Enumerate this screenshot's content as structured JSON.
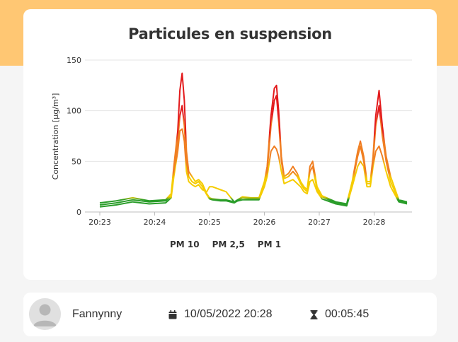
{
  "colors": {
    "accent": "#ffc773",
    "pm10": "#e31a1c",
    "pm25": "#f07f22",
    "pm1": "#f5cc00",
    "good": "#2a9d2a"
  },
  "chart_data": {
    "type": "line",
    "title": "Particules en suspension",
    "ylabel": "Concentration [µg/m³]",
    "xlabel": "",
    "ylim": [
      0,
      150
    ],
    "yticks": [
      "0",
      "50",
      "100",
      "150"
    ],
    "xticks": [
      "20:23",
      "20:24",
      "20:25",
      "20:26",
      "20:27",
      "20:28"
    ],
    "grid": true,
    "legend_position": "bottom",
    "x_unit": "minutes since 20:23",
    "series": [
      {
        "name": "PM 10",
        "x": [
          0,
          0.3,
          0.6,
          0.9,
          1.2,
          1.3,
          1.35,
          1.42,
          1.46,
          1.5,
          1.54,
          1.58,
          1.62,
          1.68,
          1.74,
          1.8,
          1.87,
          1.95,
          2.0,
          2.05,
          2.2,
          2.3,
          2.45,
          2.6,
          2.75,
          2.9,
          3.0,
          3.05,
          3.12,
          3.18,
          3.22,
          3.26,
          3.31,
          3.36,
          3.44,
          3.52,
          3.6,
          3.66,
          3.72,
          3.78,
          3.83,
          3.88,
          3.96,
          4.05,
          4.3,
          4.5,
          4.6,
          4.7,
          4.75,
          4.81,
          4.87,
          4.93,
          4.98,
          5.03,
          5.09,
          5.15,
          5.22,
          5.3,
          5.45,
          5.6
        ],
        "values": [
          9,
          11,
          14,
          11,
          12,
          18,
          45,
          80,
          120,
          137,
          110,
          60,
          40,
          35,
          30,
          32,
          28,
          18,
          14,
          13,
          12,
          12,
          10,
          15,
          14,
          14,
          30,
          45,
          95,
          122,
          125,
          100,
          55,
          35,
          38,
          45,
          38,
          30,
          25,
          22,
          45,
          50,
          25,
          16,
          10,
          8,
          30,
          60,
          70,
          55,
          30,
          30,
          55,
          95,
          120,
          85,
          55,
          35,
          12,
          10
        ]
      },
      {
        "name": "PM 2,5",
        "x": [
          0,
          0.3,
          0.6,
          0.9,
          1.2,
          1.3,
          1.35,
          1.42,
          1.46,
          1.5,
          1.54,
          1.58,
          1.62,
          1.68,
          1.74,
          1.8,
          1.87,
          1.95,
          2.0,
          2.05,
          2.2,
          2.3,
          2.45,
          2.6,
          2.75,
          2.9,
          3.0,
          3.05,
          3.12,
          3.18,
          3.22,
          3.26,
          3.31,
          3.36,
          3.44,
          3.52,
          3.6,
          3.66,
          3.72,
          3.78,
          3.83,
          3.88,
          3.96,
          4.05,
          4.3,
          4.5,
          4.6,
          4.7,
          4.75,
          4.81,
          4.87,
          4.93,
          4.98,
          5.03,
          5.09,
          5.15,
          5.22,
          5.3,
          5.45,
          5.6
        ],
        "values": [
          7,
          9,
          12,
          10,
          11,
          16,
          40,
          70,
          95,
          105,
          85,
          50,
          35,
          30,
          28,
          30,
          25,
          17,
          13,
          12,
          11,
          11,
          9,
          14,
          13,
          13,
          28,
          40,
          85,
          110,
          115,
          90,
          50,
          33,
          35,
          40,
          35,
          28,
          23,
          20,
          40,
          45,
          22,
          15,
          9,
          7,
          28,
          55,
          65,
          50,
          28,
          28,
          50,
          85,
          105,
          75,
          50,
          30,
          11,
          9
        ]
      },
      {
        "name": "PM 1",
        "x": [
          0,
          0.3,
          0.6,
          0.9,
          1.2,
          1.3,
          1.35,
          1.42,
          1.46,
          1.5,
          1.54,
          1.58,
          1.62,
          1.68,
          1.74,
          1.8,
          1.87,
          1.95,
          2.0,
          2.05,
          2.2,
          2.3,
          2.45,
          2.6,
          2.75,
          2.9,
          3.0,
          3.05,
          3.12,
          3.18,
          3.22,
          3.26,
          3.31,
          3.36,
          3.44,
          3.52,
          3.6,
          3.66,
          3.72,
          3.78,
          3.83,
          3.88,
          3.96,
          4.05,
          4.3,
          4.5,
          4.6,
          4.7,
          4.75,
          4.81,
          4.87,
          4.93,
          4.98,
          5.03,
          5.09,
          5.15,
          5.22,
          5.3,
          5.45,
          5.6
        ],
        "values": [
          5,
          7,
          10,
          8,
          9,
          14,
          35,
          60,
          80,
          82,
          70,
          40,
          30,
          27,
          25,
          27,
          22,
          20,
          25,
          25,
          22,
          20,
          10,
          12,
          12,
          12,
          25,
          35,
          60,
          65,
          62,
          55,
          40,
          28,
          30,
          32,
          28,
          25,
          20,
          18,
          30,
          32,
          20,
          13,
          8,
          6,
          25,
          45,
          50,
          45,
          25,
          25,
          45,
          60,
          65,
          55,
          40,
          25,
          10,
          8
        ]
      }
    ]
  },
  "legend": {
    "items": [
      "PM 10",
      "PM 2,5",
      "PM 1"
    ]
  },
  "footer": {
    "user_name": "Fannynny",
    "date": "10/05/2022 20:28",
    "duration": "00:05:45",
    "icons": {
      "date": "calendar-icon",
      "duration": "hourglass-icon",
      "avatar": "user-avatar-icon"
    }
  }
}
